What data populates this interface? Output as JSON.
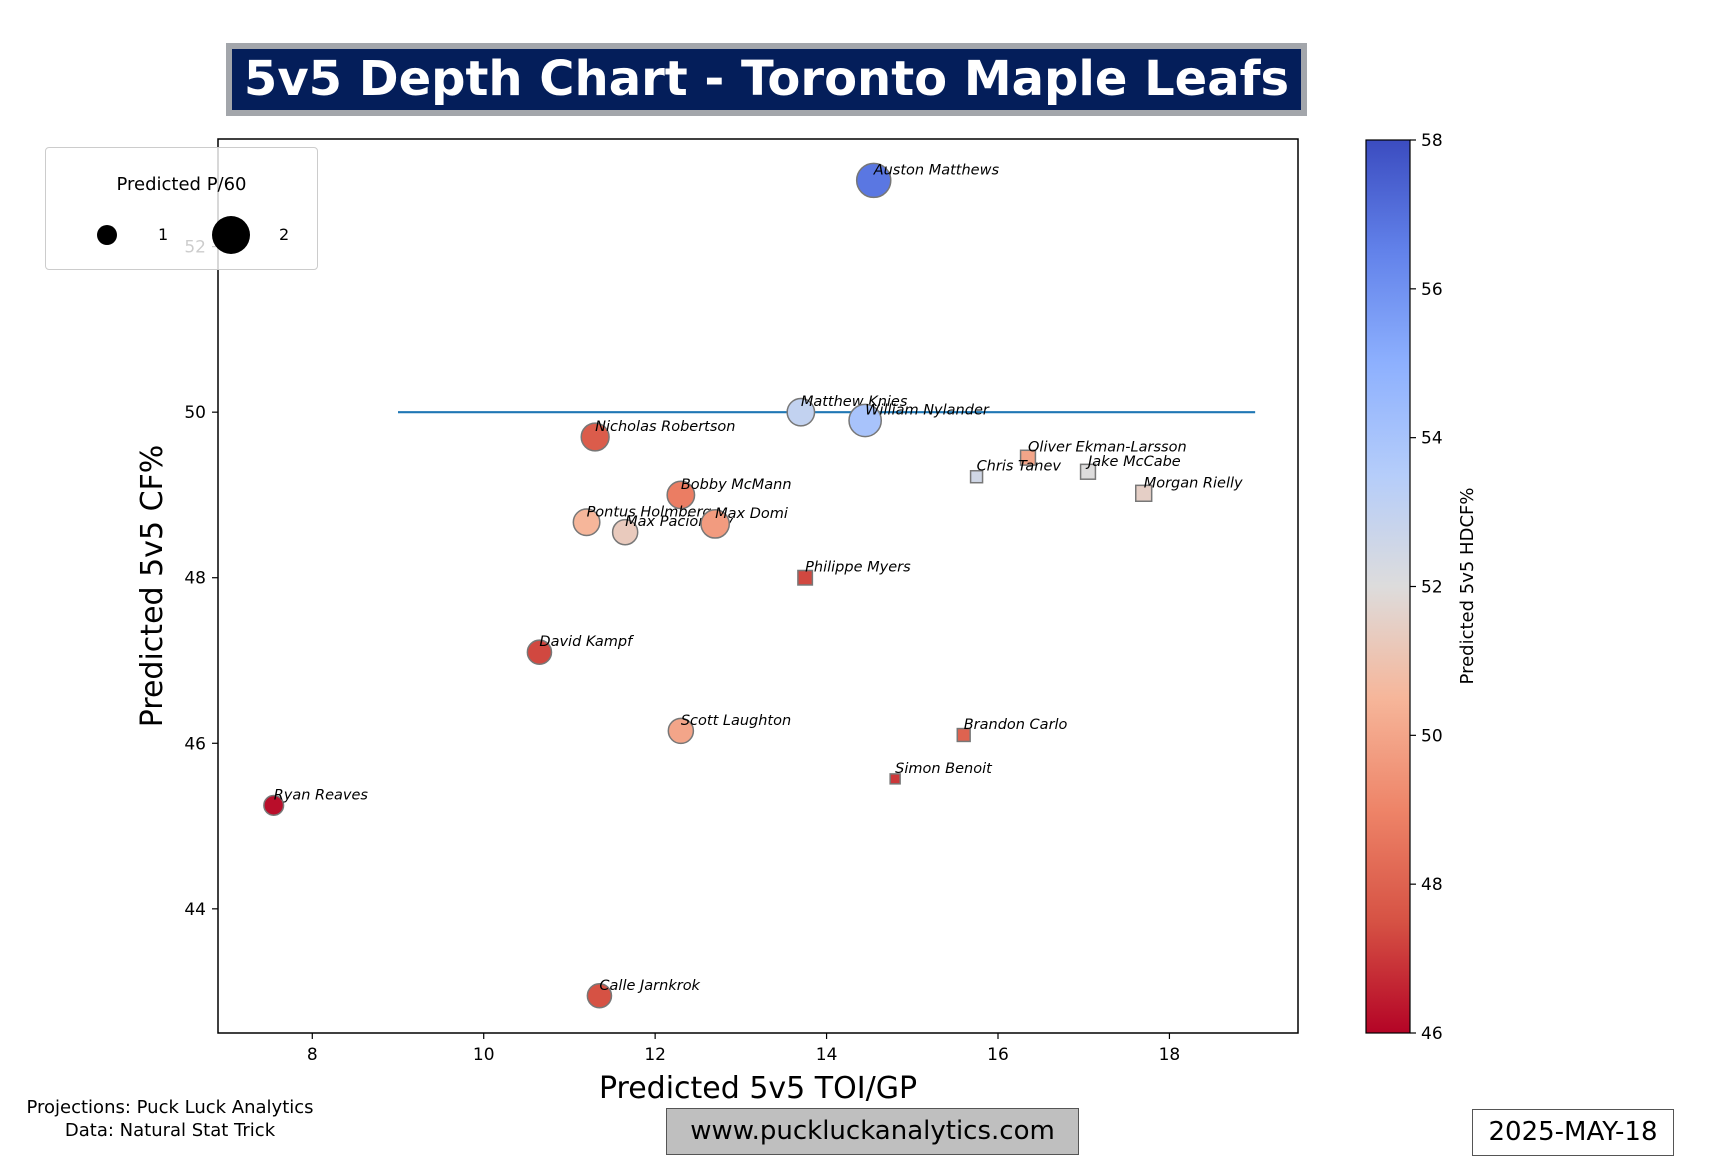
{
  "header": {
    "title": "5v5 Depth Chart - Toronto Maple Leafs"
  },
  "footer": {
    "projections": "Projections: Puck Luck Analytics",
    "data_source": "Data: Natural Stat Trick",
    "url": "www.puckluckanalytics.com",
    "date": "2025-MAY-18"
  },
  "legend": {
    "title": "Predicted P/60",
    "items": [
      {
        "label": "1",
        "value": 1
      },
      {
        "label": "2",
        "value": 2
      }
    ]
  },
  "chart_data": {
    "type": "scatter",
    "title": "5v5 Depth Chart - Toronto Maple Leafs",
    "xlabel": "Predicted 5v5 TOI/GP",
    "ylabel": "Predicted 5v5 CF%",
    "colorbar_label": "Predicted 5v5 HDCF%",
    "xlim": [
      6.9,
      19.5
    ],
    "ylim": [
      42.5,
      53.3
    ],
    "xticks": [
      8,
      10,
      12,
      14,
      16,
      18
    ],
    "yticks": [
      44,
      46,
      48,
      50,
      52
    ],
    "colorbar_range": [
      46,
      58
    ],
    "colorbar_ticks": [
      46,
      48,
      50,
      52,
      54,
      56,
      58
    ],
    "reference_line": {
      "y": 50,
      "x_start": 9,
      "x_end": 19,
      "color": "#1f77b4"
    },
    "grid": false,
    "legend_placement": "top-left",
    "marker_shapes": {
      "forward": "circle",
      "defense": "square"
    },
    "points": [
      {
        "name": "Auston Matthews",
        "toi": 14.55,
        "cf": 52.8,
        "hdcf": 56.8,
        "p60": 2.4,
        "pos": "F"
      },
      {
        "name": "Matthew Knies",
        "toi": 13.7,
        "cf": 50.0,
        "hdcf": 53.0,
        "p60": 1.55,
        "pos": "F"
      },
      {
        "name": "William Nylander",
        "toi": 14.45,
        "cf": 49.9,
        "hdcf": 54.0,
        "p60": 2.15,
        "pos": "F"
      },
      {
        "name": "Nicholas Robertson",
        "toi": 11.3,
        "cf": 49.7,
        "hdcf": 47.8,
        "p60": 1.6,
        "pos": "F"
      },
      {
        "name": "Bobby McMann",
        "toi": 12.3,
        "cf": 49.0,
        "hdcf": 48.8,
        "p60": 1.55,
        "pos": "F"
      },
      {
        "name": "Pontus Holmberg",
        "toi": 11.2,
        "cf": 48.67,
        "hdcf": 50.5,
        "p60": 1.45,
        "pos": "F"
      },
      {
        "name": "Max Pacioretty",
        "toi": 11.65,
        "cf": 48.55,
        "hdcf": 51.3,
        "p60": 1.3,
        "pos": "F"
      },
      {
        "name": "Max Domi",
        "toi": 12.7,
        "cf": 48.65,
        "hdcf": 49.7,
        "p60": 1.65,
        "pos": "F"
      },
      {
        "name": "David Kampf",
        "toi": 10.65,
        "cf": 47.1,
        "hdcf": 47.3,
        "p60": 1.2,
        "pos": "F"
      },
      {
        "name": "Scott Laughton",
        "toi": 12.3,
        "cf": 46.15,
        "hdcf": 50.0,
        "p60": 1.3,
        "pos": "F"
      },
      {
        "name": "Ryan Reaves",
        "toi": 7.55,
        "cf": 45.25,
        "hdcf": 46.2,
        "p60": 0.8,
        "pos": "F"
      },
      {
        "name": "Calle Jarnkrok",
        "toi": 11.35,
        "cf": 42.95,
        "hdcf": 47.5,
        "p60": 1.2,
        "pos": "F"
      },
      {
        "name": "Oliver Ekman-Larsson",
        "toi": 16.35,
        "cf": 49.45,
        "hdcf": 50.0,
        "p60": 1.0,
        "pos": "D"
      },
      {
        "name": "Chris Tanev",
        "toi": 15.75,
        "cf": 49.22,
        "hdcf": 52.5,
        "p60": 0.65,
        "pos": "D"
      },
      {
        "name": "Jake McCabe",
        "toi": 17.05,
        "cf": 49.28,
        "hdcf": 52.0,
        "p60": 1.0,
        "pos": "D"
      },
      {
        "name": "Morgan Rielly",
        "toi": 17.7,
        "cf": 49.02,
        "hdcf": 51.5,
        "p60": 1.15,
        "pos": "D"
      },
      {
        "name": "Philippe Myers",
        "toi": 13.75,
        "cf": 48.0,
        "hdcf": 47.3,
        "p60": 0.95,
        "pos": "D"
      },
      {
        "name": "Brandon Carlo",
        "toi": 15.6,
        "cf": 46.1,
        "hdcf": 48.0,
        "p60": 0.75,
        "pos": "D"
      },
      {
        "name": "Simon Benoit",
        "toi": 14.8,
        "cf": 45.57,
        "hdcf": 47.0,
        "p60": 0.45,
        "pos": "D"
      }
    ]
  }
}
